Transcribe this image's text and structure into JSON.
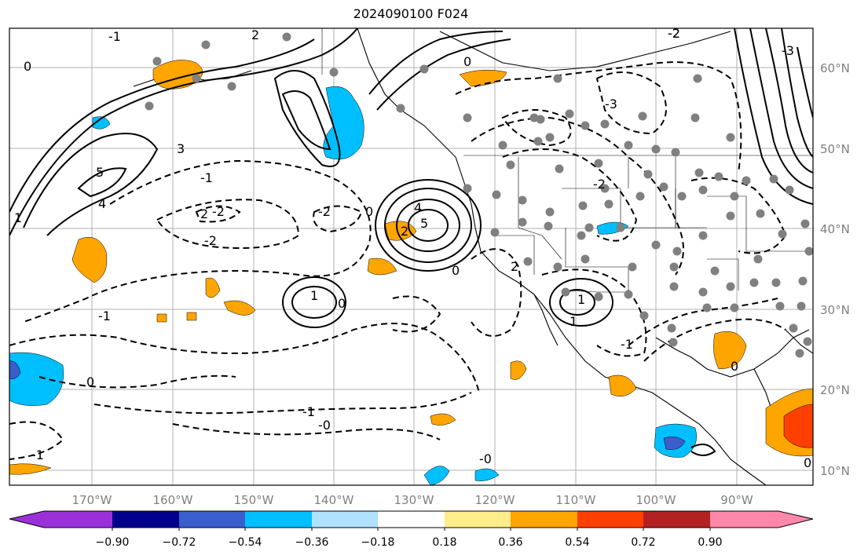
{
  "title": "2024090100 F024",
  "lon_ticks": [
    "170°W",
    "160°W",
    "150°W",
    "140°W",
    "130°W",
    "120°W",
    "110°W",
    "100°W",
    "90°W"
  ],
  "lat_ticks": [
    "60°N",
    "50°N",
    "40°N",
    "30°N",
    "20°N",
    "10°N"
  ],
  "colorbar": {
    "colors": [
      "#9b30d9",
      "#00008b",
      "#3a5fcd",
      "#00bfff",
      "#b0e2ff",
      "#ffffff",
      "#ffec8b",
      "#ffa500",
      "#ff4000",
      "#b22222",
      "#ff88aa"
    ],
    "labels": [
      "−0.90",
      "−0.72",
      "−0.54",
      "−0.36",
      "−0.18",
      "0.18",
      "0.36",
      "0.54",
      "0.72",
      "0.90"
    ]
  },
  "contour_labels": [
    "0",
    "1",
    "2",
    "3",
    "4",
    "5",
    "-1",
    "-2",
    "-3",
    "0",
    "-1",
    "-2",
    "0",
    "1",
    "2",
    "-1",
    "-2",
    "4",
    "5",
    "0",
    "-1",
    "0",
    "1",
    "2",
    "-2",
    "-2",
    "-3",
    "-1",
    "-0",
    "0",
    "-2",
    "2",
    "0",
    "1",
    "-0",
    "0",
    "-1"
  ],
  "colors": {
    "positive_fill": "#ffa500",
    "negative_fill": "#00bfff",
    "grid": "#b0b0b0",
    "stations": "#808080"
  }
}
